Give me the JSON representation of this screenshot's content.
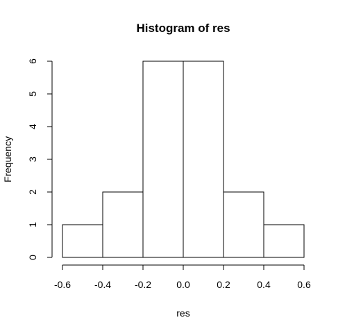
{
  "chart_data": {
    "type": "bar",
    "title": "Histogram of res",
    "xlabel": "res",
    "ylabel": "Frequency",
    "bins": [
      {
        "start": -0.6,
        "end": -0.4,
        "count": 1
      },
      {
        "start": -0.4,
        "end": -0.2,
        "count": 2
      },
      {
        "start": -0.2,
        "end": 0.0,
        "count": 6
      },
      {
        "start": 0.0,
        "end": 0.2,
        "count": 6
      },
      {
        "start": 0.2,
        "end": 0.4,
        "count": 2
      },
      {
        "start": 0.4,
        "end": 0.6,
        "count": 1
      }
    ],
    "xlim": [
      -0.6,
      0.6
    ],
    "ylim": [
      0,
      6
    ],
    "xticks": [
      -0.6,
      -0.4,
      -0.2,
      0.0,
      0.2,
      0.4,
      0.6
    ],
    "xtick_labels": [
      "-0.6",
      "-0.4",
      "-0.2",
      "0.0",
      "0.2",
      "0.4",
      "0.6"
    ],
    "yticks": [
      0,
      1,
      2,
      3,
      4,
      5,
      6
    ],
    "ytick_labels": [
      "0",
      "1",
      "2",
      "3",
      "4",
      "5",
      "6"
    ],
    "bar_fill": "#ffffff",
    "bar_stroke": "#000000",
    "grid": false,
    "legend": "none"
  }
}
